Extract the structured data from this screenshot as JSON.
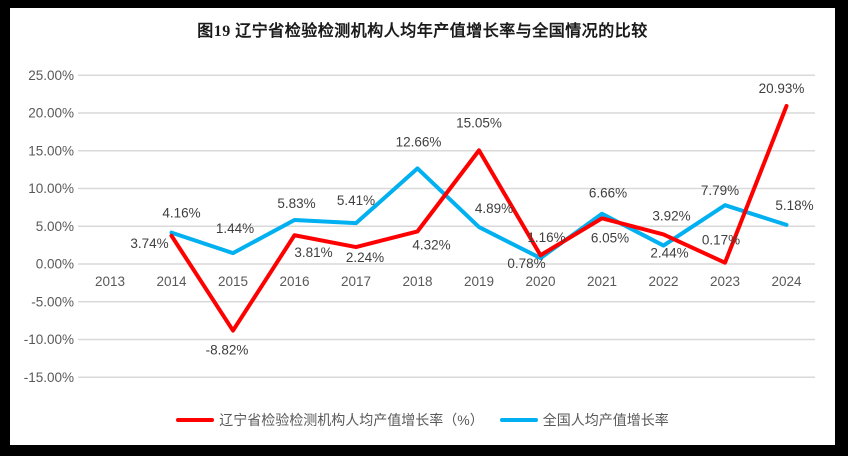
{
  "colors": {
    "border": "#000000",
    "background": "#FFFFFF",
    "grid": "#D9D9D9",
    "axis_text": "#595959",
    "data_label_text": "#3F3F3F",
    "series_liaoning": "#FF0000",
    "series_national": "#00B0F0"
  },
  "chart_data": {
    "type": "line",
    "title": "图19 辽宁省检验检测机构人均年产值增长率与全国情况的比较",
    "categories": [
      "2013",
      "2014",
      "2015",
      "2016",
      "2017",
      "2018",
      "2019",
      "2020",
      "2021",
      "2022",
      "2023",
      "2024"
    ],
    "series": [
      {
        "name": "辽宁省检验检测机构人均产值增长率（%）",
        "color": "#FF0000",
        "values": [
          null,
          3.74,
          -8.82,
          3.81,
          2.24,
          4.32,
          15.05,
          1.16,
          6.05,
          3.92,
          0.17,
          20.93
        ]
      },
      {
        "name": "全国人均产值增长率",
        "color": "#00B0F0",
        "values": [
          null,
          4.16,
          1.44,
          5.83,
          5.41,
          12.66,
          4.89,
          0.78,
          6.66,
          2.44,
          7.79,
          5.18
        ]
      }
    ],
    "ylim": [
      -15,
      25
    ],
    "ytick_step": 5,
    "ytick_labels": [
      "25.00%",
      "20.00%",
      "15.00%",
      "10.00%",
      "5.00%",
      "0.00%",
      "-5.00%",
      "-10.00%",
      "-15.00%"
    ],
    "xlabel": "",
    "ylabel": "",
    "grid": true,
    "data_labels": true,
    "legend_position": "bottom"
  }
}
